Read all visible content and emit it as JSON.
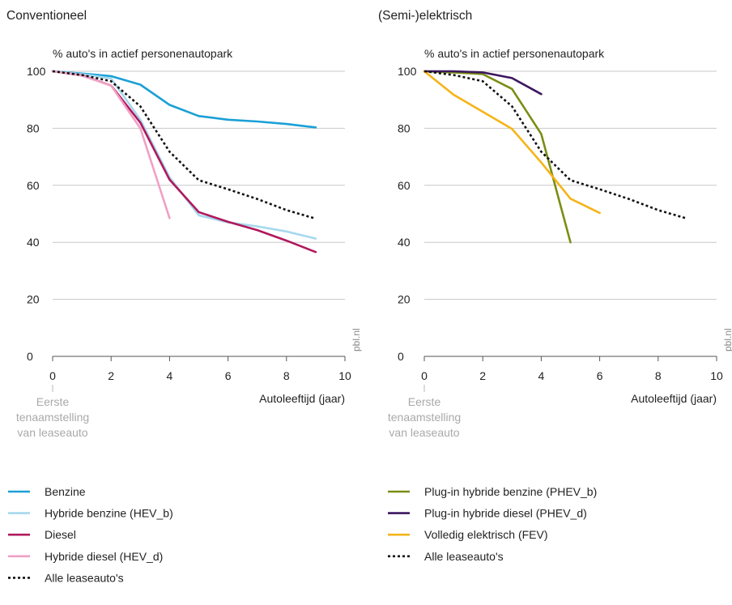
{
  "chart_data": [
    {
      "type": "line",
      "title": "Conventioneel",
      "ylabel": "% auto's in actief personenautopark",
      "xlabel": "Autoleeftijd (jaar)",
      "xlim": [
        0,
        10
      ],
      "ylim": [
        0,
        100
      ],
      "xticks": [
        0,
        2,
        4,
        6,
        8,
        10
      ],
      "yticks": [
        0,
        20,
        40,
        60,
        80,
        100
      ],
      "grid": "horizontal",
      "x0_annotation": [
        "Eerste",
        "tenaamstelling",
        "van leaseauto"
      ],
      "source": "pbl.nl",
      "series": [
        {
          "name": "Benzine",
          "color": "#1aa0d6",
          "style": "solid",
          "x": [
            0,
            1,
            2,
            3,
            4,
            5,
            6,
            7,
            8,
            9
          ],
          "y": [
            100,
            99.2,
            98.3,
            95.3,
            88.2,
            84.3,
            83,
            82.4,
            81.5,
            80.3
          ]
        },
        {
          "name": "Hybride benzine (HEV_b)",
          "color": "#a6d8f0",
          "style": "solid",
          "x": [
            0,
            1,
            2,
            3,
            4,
            5,
            6,
            7,
            8,
            9
          ],
          "y": [
            100,
            99,
            97.5,
            83,
            62.8,
            49.5,
            47,
            45.6,
            43.8,
            41.3
          ]
        },
        {
          "name": "Diesel",
          "color": "#b0195c",
          "style": "solid",
          "x": [
            0,
            1,
            2,
            3,
            4,
            5,
            6,
            7,
            8,
            9
          ],
          "y": [
            100,
            98.6,
            95,
            82,
            62,
            50.6,
            47.2,
            44.3,
            40.6,
            36.6
          ]
        },
        {
          "name": "Hybride diesel (HEV_d)",
          "color": "#f0a0c4",
          "style": "solid",
          "x": [
            0,
            1,
            2,
            3,
            4
          ],
          "y": [
            100,
            98.5,
            95,
            80,
            48.5
          ]
        },
        {
          "name": "Alle leaseauto's",
          "color": "#111111",
          "style": "dotted",
          "x": [
            0,
            1,
            2,
            3,
            4,
            5,
            6,
            7,
            8,
            9
          ],
          "y": [
            100,
            98.7,
            96.5,
            87.7,
            71.8,
            61.8,
            58.6,
            55.2,
            51.3,
            48.3
          ]
        }
      ]
    },
    {
      "type": "line",
      "title": "(Semi-)elektrisch",
      "ylabel": "% auto's in actief personenautopark",
      "xlabel": "Autoleeftijd (jaar)",
      "xlim": [
        0,
        10
      ],
      "ylim": [
        0,
        100
      ],
      "xticks": [
        0,
        2,
        4,
        6,
        8,
        10
      ],
      "yticks": [
        0,
        20,
        40,
        60,
        80,
        100
      ],
      "grid": "horizontal",
      "x0_annotation": [
        "Eerste",
        "tenaamstelling",
        "van leaseauto"
      ],
      "source": "pbl.nl",
      "series": [
        {
          "name": "Plug-in hybride benzine (PHEV_b)",
          "color": "#7a8e14",
          "style": "solid",
          "x": [
            0,
            1,
            2,
            3,
            4,
            5
          ],
          "y": [
            100,
            99.6,
            99,
            93.8,
            78,
            40
          ]
        },
        {
          "name": "Plug-in hybride diesel (PHEV_d)",
          "color": "#3d1760",
          "style": "solid",
          "x": [
            0,
            1,
            2,
            3,
            4
          ],
          "y": [
            100,
            100,
            99.6,
            97.6,
            92
          ]
        },
        {
          "name": "Volledig elektrisch (FEV)",
          "color": "#f5b417",
          "style": "solid",
          "x": [
            0,
            1,
            2,
            3,
            4,
            5,
            6
          ],
          "y": [
            100,
            91.8,
            85.8,
            79.8,
            68,
            55.3,
            50.3
          ]
        },
        {
          "name": "Alle leaseauto's",
          "color": "#111111",
          "style": "dotted",
          "x": [
            0,
            1,
            2,
            3,
            4,
            5,
            6,
            7,
            8,
            9
          ],
          "y": [
            100,
            98.7,
            96.5,
            87.7,
            71.8,
            61.8,
            58.6,
            55.2,
            51.3,
            48.3
          ]
        }
      ]
    }
  ]
}
